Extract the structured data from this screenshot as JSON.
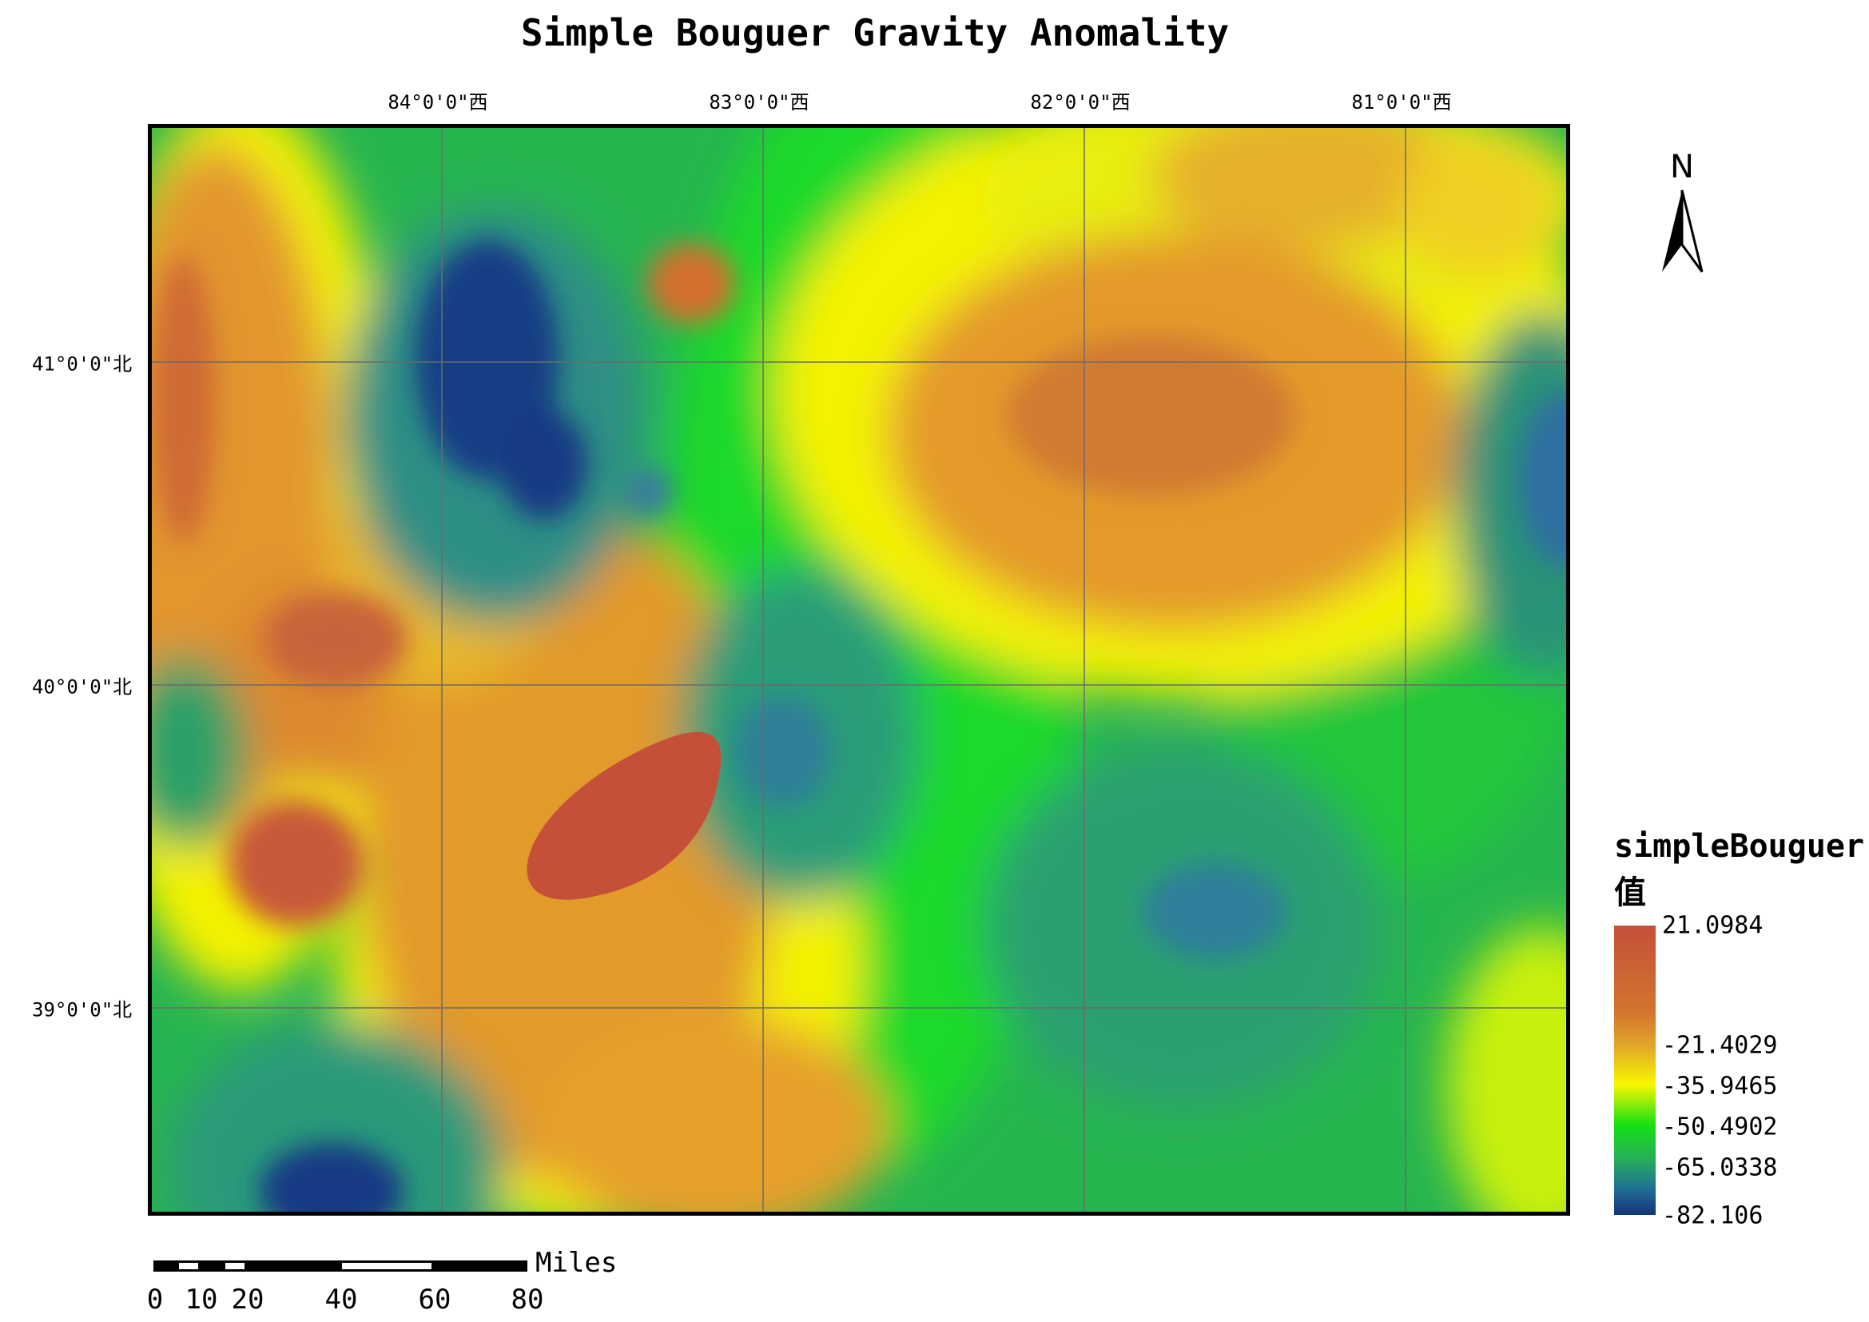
{
  "map": {
    "title": "Simple Bouguer Gravity Anomality",
    "longitude_labels": [
      "84°0'0\"西",
      "83°0'0\"西",
      "82°0'0\"西",
      "81°0'0\"西"
    ],
    "latitude_labels": [
      "41°0'0\"北",
      "40°0'0\"北",
      "39°0'0\"北"
    ],
    "north_arrow_label": "N"
  },
  "legend": {
    "field": "simpleBouguer",
    "subtitle": "值",
    "values": [
      "21.0984",
      "-21.4029",
      "-35.9465",
      "-50.4902",
      "-65.0338",
      "-82.106"
    ],
    "colors": {
      "high": "#c4503a",
      "orange": "#d4742e",
      "yellow": "#f7f700",
      "green": "#14e014",
      "teal": "#27b255",
      "low": "#15337a"
    }
  },
  "scalebar": {
    "unit": "Miles",
    "ticks": [
      "0",
      "10",
      "20",
      "40",
      "60",
      "80"
    ]
  }
}
